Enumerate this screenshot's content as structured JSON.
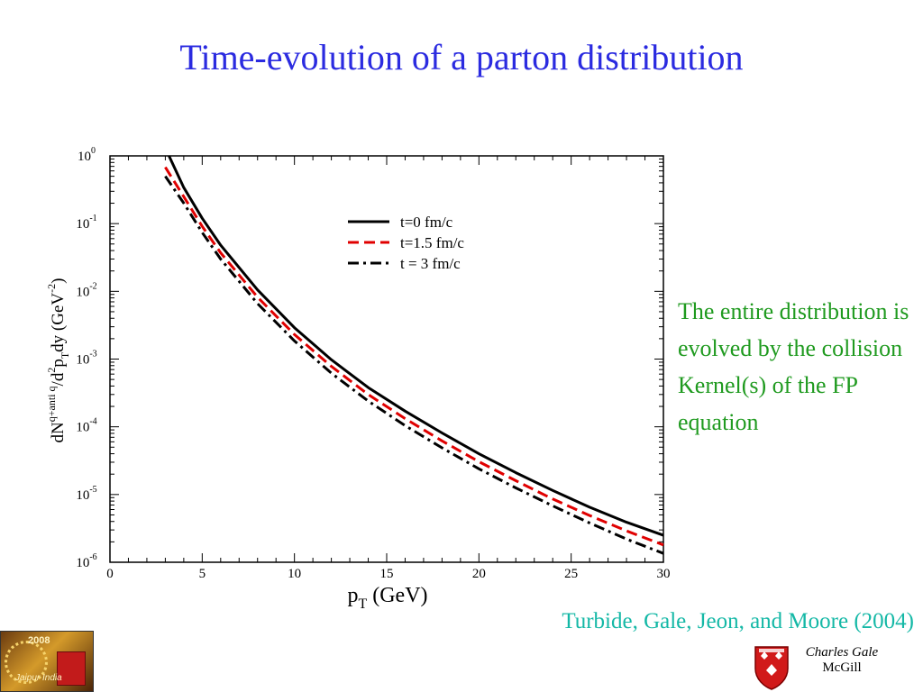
{
  "slide": {
    "title": "Time-evolution of a parton distribution",
    "side_note": "The entire distribution is evolved by the collision Kernel(s) of the FP equation",
    "citation": "Turbide, Gale, Jeon, and Moore (2004)",
    "author_name": "Charles Gale",
    "author_institution": "McGill",
    "logo_left_year": "2008",
    "logo_left_tag": "Jaipur India"
  },
  "chart_data": {
    "type": "line",
    "xlabel": "p_T (GeV)",
    "ylabel": "dN^{q+anti q}/d^2p_T dy (GeV^-2)",
    "xlim": [
      0,
      30
    ],
    "ylim": [
      1e-06,
      1
    ],
    "yscale": "log",
    "grid": false,
    "legend_position": "top-center",
    "x_ticks": [
      0,
      5,
      10,
      15,
      20,
      25,
      30
    ],
    "y_ticks": [
      {
        "base": "10",
        "exp": "-6",
        "value": 1e-06
      },
      {
        "base": "10",
        "exp": "-5",
        "value": 1e-05
      },
      {
        "base": "10",
        "exp": "-4",
        "value": 0.0001
      },
      {
        "base": "10",
        "exp": "-3",
        "value": 0.001
      },
      {
        "base": "10",
        "exp": "-2",
        "value": 0.01
      },
      {
        "base": "10",
        "exp": "-1",
        "value": 0.1
      },
      {
        "base": "10",
        "exp": "0",
        "value": 1
      }
    ],
    "series": [
      {
        "name": "t=0 fm/c",
        "color": "#000000",
        "dash": "solid",
        "x": [
          3.2,
          4,
          5,
          6,
          8,
          10,
          12,
          14,
          16,
          18,
          20,
          22,
          24,
          26,
          28,
          30
        ],
        "y": [
          1.0,
          0.34,
          0.12,
          0.048,
          0.0105,
          0.0029,
          0.00098,
          0.00038,
          0.00017,
          8.1e-05,
          4e-05,
          2.1e-05,
          1.15e-05,
          6.5e-06,
          3.9e-06,
          2.5e-06
        ]
      },
      {
        "name": "t=1.5 fm/c",
        "color": "#e00000",
        "dash": "dashed",
        "x": [
          3,
          4,
          5,
          6,
          8,
          10,
          12,
          14,
          16,
          18,
          20,
          22,
          24,
          26,
          28,
          30
        ],
        "y": [
          0.68,
          0.25,
          0.091,
          0.037,
          0.0082,
          0.0023,
          0.00078,
          0.0003,
          0.000132,
          6.2e-05,
          3.05e-05,
          1.6e-05,
          8.6e-06,
          4.9e-06,
          2.9e-06,
          1.8e-06
        ]
      },
      {
        "name": "t = 3 fm/c",
        "color": "#000000",
        "dash": "dashdot",
        "x": [
          3,
          4,
          5,
          6,
          8,
          10,
          12,
          14,
          16,
          18,
          20,
          22,
          24,
          26,
          28,
          30
        ],
        "y": [
          0.5,
          0.2,
          0.074,
          0.03,
          0.0066,
          0.00185,
          0.00062,
          0.00024,
          0.000104,
          4.9e-05,
          2.4e-05,
          1.25e-05,
          6.8e-06,
          3.8e-06,
          2.2e-06,
          1.35e-06
        ]
      }
    ]
  }
}
